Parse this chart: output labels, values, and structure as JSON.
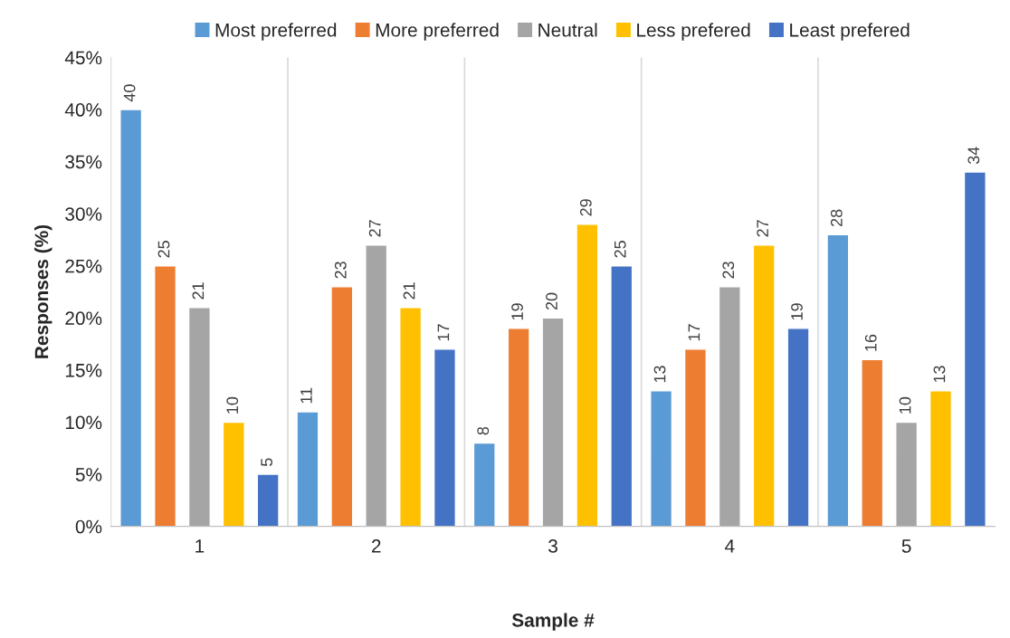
{
  "chart_data": {
    "type": "bar",
    "xlabel": "Sample #",
    "ylabel": "Responses (%)",
    "categories": [
      "1",
      "2",
      "3",
      "4",
      "5"
    ],
    "series": [
      {
        "name": "Most preferred",
        "color": "#5b9bd5",
        "values": [
          40,
          11,
          8,
          13,
          28
        ]
      },
      {
        "name": "More preferred",
        "color": "#ed7d31",
        "values": [
          25,
          23,
          19,
          17,
          16
        ]
      },
      {
        "name": "Neutral",
        "color": "#a5a5a5",
        "values": [
          21,
          27,
          20,
          23,
          10
        ]
      },
      {
        "name": "Less prefered",
        "color": "#ffc000",
        "values": [
          10,
          21,
          29,
          27,
          13
        ]
      },
      {
        "name": "Least prefered",
        "color": "#4472c4",
        "values": [
          5,
          17,
          25,
          19,
          34
        ]
      }
    ],
    "ylim": [
      0,
      45
    ],
    "yticks": [
      {
        "value": 0,
        "label": "0%"
      },
      {
        "value": 5,
        "label": "5%"
      },
      {
        "value": 10,
        "label": "10%"
      },
      {
        "value": 15,
        "label": "15%"
      },
      {
        "value": 20,
        "label": "20%"
      },
      {
        "value": 25,
        "label": "25%"
      },
      {
        "value": 30,
        "label": "30%"
      },
      {
        "value": 35,
        "label": "35%"
      },
      {
        "value": 40,
        "label": "40%"
      },
      {
        "value": 45,
        "label": "45%"
      }
    ],
    "data_labels": true,
    "grid": "x",
    "legend": "top"
  }
}
